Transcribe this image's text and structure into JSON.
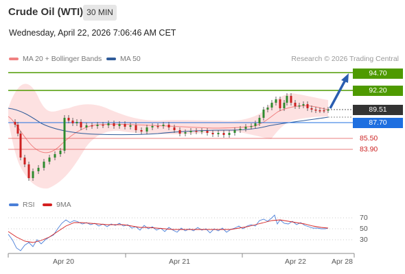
{
  "header": {
    "title": "Crude Oil (WTI)",
    "timeframe": "30 MIN",
    "datetime": "Wednesday, April 22, 2026 7:06:46 AM CET"
  },
  "legend": {
    "ma20": "MA 20 + Bollinger Bands",
    "ma50": "MA 50",
    "rsi": "RSI",
    "ma9": "9MA",
    "credit": "Research © 2026 Trading Central"
  },
  "colors": {
    "ma20": "#f08080",
    "ma50": "#2f5b99",
    "rsi": "#4a7fd8",
    "ma9": "#d42020",
    "green": "#4e9a00",
    "blue": "#1e6fe0",
    "red": "#e05050"
  },
  "levels": {
    "r2": "94.70",
    "r1": "92.20",
    "last": "89.51",
    "pivot": "87.70",
    "s1": "85.50",
    "s2": "83.90"
  },
  "rsi_axis": [
    "70",
    "50",
    "30"
  ],
  "x_axis": [
    "Apr 20",
    "Apr 21",
    "Apr 22",
    "Apr 28"
  ],
  "chart_data": [
    {
      "type": "candlestick",
      "title": "Crude Oil (WTI)",
      "x": [
        "Apr 20",
        "Apr 21",
        "Apr 22"
      ],
      "last_price": 89.51,
      "horizontal_levels": [
        94.7,
        92.2,
        87.7,
        85.5,
        83.9
      ],
      "series": [
        {
          "name": "MA 20 + Bollinger Bands"
        },
        {
          "name": "MA 50"
        }
      ],
      "projection": {
        "from": 89.51,
        "to": 94.7
      }
    },
    {
      "type": "line",
      "series": [
        {
          "name": "RSI"
        },
        {
          "name": "9MA"
        }
      ],
      "ylim": [
        0,
        100
      ],
      "yticks": [
        70,
        50,
        30
      ]
    }
  ]
}
